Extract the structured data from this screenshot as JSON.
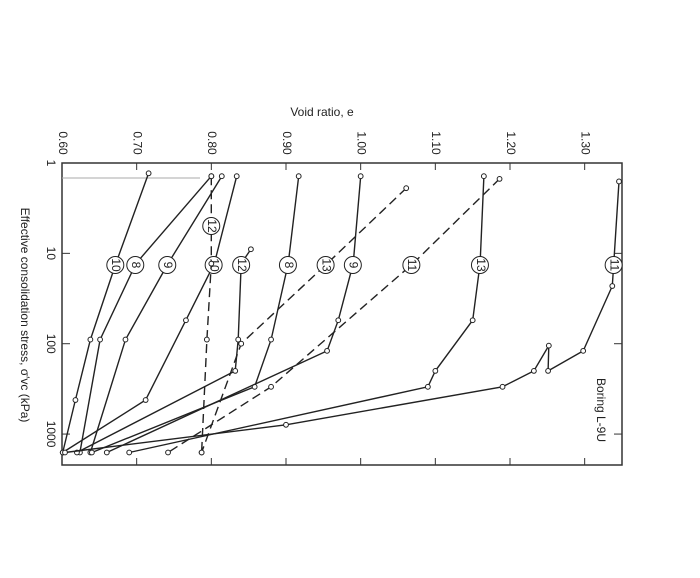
{
  "chart_data": {
    "type": "line",
    "title": "Void ratio, e",
    "x_label": "Effective consolidation stress, σ′vc (kPa)",
    "annotation": "Boring L-9U",
    "log_x": true,
    "xlim": [
      1,
      2200
    ],
    "xticks": [
      1,
      10,
      100,
      1000
    ],
    "ylim": [
      0.6,
      1.35
    ],
    "yticks": [
      {
        "value": 0.6,
        "label": "0.60"
      },
      {
        "value": 0.7,
        "label": "0.70"
      },
      {
        "value": 0.8,
        "label": "0.80"
      },
      {
        "value": 0.9,
        "label": "0.90"
      },
      {
        "value": 1.0,
        "label": "1.00"
      },
      {
        "value": 1.1,
        "label": "1.10"
      },
      {
        "value": 1.2,
        "label": "1.20"
      },
      {
        "value": 1.3,
        "label": "1.30"
      }
    ],
    "series": [
      {
        "name": "10",
        "color": "#222",
        "dashed": false,
        "x": [
          1.3,
          13,
          90,
          420,
          1600
        ],
        "values": [
          0.716,
          0.672,
          0.638,
          0.618,
          0.601
        ]
      },
      {
        "name": "8",
        "color": "#222",
        "dashed": false,
        "x": [
          1.4,
          13,
          90,
          1600
        ],
        "values": [
          0.8,
          0.699,
          0.651,
          0.624
        ]
      },
      {
        "name": "9",
        "color": "#222",
        "dashed": false,
        "x": [
          1.4,
          13,
          90,
          1600
        ],
        "values": [
          0.814,
          0.742,
          0.685,
          0.638
        ]
      },
      {
        "name": "10",
        "color": "#222",
        "dashed": false,
        "x": [
          1.4,
          13,
          55,
          420,
          1600
        ],
        "values": [
          0.834,
          0.804,
          0.766,
          0.712,
          0.601
        ]
      },
      {
        "name": "12",
        "color": "#222",
        "dashed": true,
        "x": [
          1.4,
          13,
          90,
          1600
        ],
        "values": [
          0.8,
          0.8,
          0.794,
          0.787
        ]
      },
      {
        "name": "12",
        "color": "#222",
        "dashed": false,
        "x": [
          9,
          13,
          90,
          200,
          1600
        ],
        "values": [
          0.853,
          0.84,
          0.836,
          0.832,
          0.62
        ]
      },
      {
        "name": "8",
        "color": "#222",
        "dashed": false,
        "x": [
          1.4,
          13,
          90,
          300,
          1600
        ],
        "values": [
          0.917,
          0.903,
          0.88,
          0.858,
          0.64
        ]
      },
      {
        "name": "13",
        "color": "#222",
        "dashed": true,
        "x": [
          1.9,
          13,
          100,
          1600
        ],
        "values": [
          1.061,
          0.955,
          0.84,
          0.787
        ]
      },
      {
        "name": "9",
        "color": "#222",
        "dashed": false,
        "x": [
          1.4,
          13,
          55,
          120,
          1600
        ],
        "values": [
          1.0,
          0.99,
          0.97,
          0.955,
          0.66
        ]
      },
      {
        "name": "11",
        "color": "#222",
        "dashed": true,
        "x": [
          1.5,
          13,
          300,
          1600
        ],
        "values": [
          1.186,
          1.07,
          0.88,
          0.742
        ]
      },
      {
        "name": "13",
        "color": "#222",
        "dashed": false,
        "x": [
          1.4,
          13,
          55,
          200,
          300,
          1600
        ],
        "values": [
          1.165,
          1.16,
          1.15,
          1.1,
          1.09,
          0.69
        ]
      },
      {
        "name": "11",
        "color": "#222",
        "dashed": false,
        "x": [
          1.6,
          23,
          120,
          200,
          105,
          200,
          300,
          790,
          1600
        ],
        "values": [
          1.346,
          1.337,
          1.298,
          1.251,
          1.252,
          1.232,
          1.19,
          0.9,
          0.604
        ]
      }
    ]
  }
}
